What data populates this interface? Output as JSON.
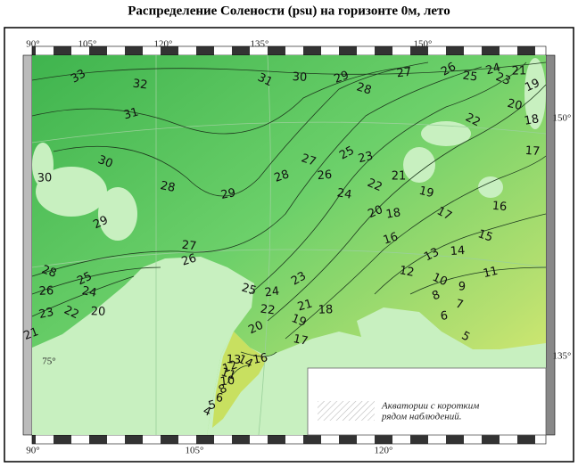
{
  "title": "Распределение Солености (psu) на горизонте  0м, лето",
  "top_longitudes": [
    "90°",
    "105°",
    "120°",
    "135°",
    "150°"
  ],
  "bottom_longitudes": [
    "90°",
    "105°",
    "120°"
  ],
  "right_latitudes": [
    "150°",
    "135°"
  ],
  "left_latitudes": [
    "75°"
  ],
  "contour_labels": [
    "33",
    "32",
    "31",
    "30",
    "30",
    "29",
    "28",
    "29",
    "31",
    "30",
    "29",
    "28",
    "27",
    "26",
    "25",
    "24",
    "23",
    "21",
    "19",
    "20",
    "18",
    "22",
    "17",
    "28",
    "27",
    "26",
    "25",
    "24",
    "23",
    "22",
    "21",
    "20",
    "19",
    "18",
    "17",
    "16",
    "16",
    "15",
    "14",
    "13",
    "12",
    "11",
    "10",
    "9",
    "8",
    "7",
    "6",
    "5",
    "27",
    "26",
    "28",
    "26",
    "25",
    "24",
    "23",
    "22",
    "20",
    "21",
    "25",
    "24",
    "23",
    "22",
    "21",
    "19",
    "18",
    "20",
    "17",
    "16",
    "14",
    "13",
    "12",
    "11",
    "10",
    "8",
    "6",
    "5",
    "4"
  ],
  "legend": [
    "Акватории с коротким",
    "рядом наблюдений."
  ]
}
